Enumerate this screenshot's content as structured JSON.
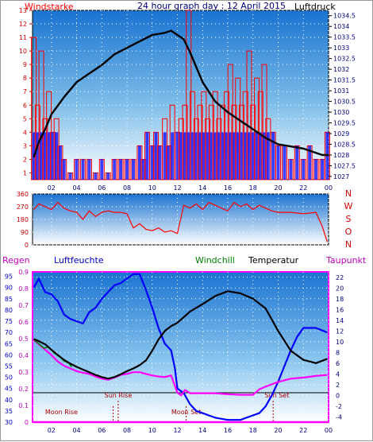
{
  "header": {
    "title": "24 hour graph day : 12 April 2015",
    "left_label": "Windstarke",
    "right_label": "Luftdruck"
  },
  "colors": {
    "wind": "#ff0000",
    "wind_low": "#0000ff",
    "pressure": "#000000",
    "direction": "#ff0000",
    "humidity": "#0000ff",
    "temperature": "#000000",
    "dewpoint": "#ff00ff",
    "windchill": "#008000",
    "rain": "#ff00ff",
    "sun_moon": "#aa0000",
    "axis_left_top": "#d00000",
    "axis_right_top": "#000080",
    "plot_top": "#1a73d1",
    "plot_bottom": "#ffffff"
  },
  "x_ticks": [
    "02",
    "04",
    "06",
    "08",
    "10",
    "12",
    "14",
    "16",
    "18",
    "20",
    "22",
    "00"
  ],
  "chart_data": [
    {
      "type": "line",
      "name": "wind-pressure",
      "x_unit": "hour",
      "xlim": [
        0.5,
        24.0
      ],
      "left_axis": {
        "label": "Windstarke",
        "ticks": [
          1,
          2,
          3,
          4,
          5,
          6,
          7,
          8,
          9,
          10,
          11,
          12,
          13
        ],
        "ylim": [
          0.5,
          13.0
        ]
      },
      "right_axis": {
        "label": "Luftdruck",
        "ticks": [
          "1027",
          "1027.5",
          "1028",
          "1028.5",
          "1029",
          "1029.5",
          "1030",
          "1030.5",
          "1031",
          "1031.5",
          "1032",
          "1032.5",
          "1033",
          "1033.5",
          "1034",
          "1034.5"
        ],
        "ylim": [
          1026.85,
          1034.75
        ]
      },
      "series": [
        {
          "role": "wind",
          "x": [
            0.6,
            0.9,
            1.2,
            1.5,
            1.8,
            2.1,
            2.4,
            2.7,
            3.0,
            3.5,
            4.0,
            4.5,
            5.0,
            5.5,
            6.0,
            6.5,
            7.0,
            7.5,
            8.0,
            8.5,
            9.0,
            9.3,
            9.6,
            10.0,
            10.3,
            10.6,
            11.0,
            11.3,
            11.6,
            12.0,
            12.3,
            12.6,
            12.9,
            13.2,
            13.5,
            13.8,
            14.1,
            14.4,
            14.7,
            15.0,
            15.3,
            15.6,
            15.9,
            16.2,
            16.5,
            16.8,
            17.1,
            17.4,
            17.7,
            18.0,
            18.3,
            18.6,
            18.9,
            19.2,
            19.6,
            20.0,
            20.5,
            21.0,
            21.5,
            22.0,
            22.5,
            23.0,
            23.5,
            23.9
          ],
          "y": [
            11,
            6,
            10,
            5,
            7,
            4,
            5,
            3,
            2,
            1,
            2,
            2,
            2,
            1,
            2,
            1,
            2,
            2,
            2,
            2,
            3,
            2,
            4,
            3,
            4,
            3,
            5,
            3,
            6,
            4,
            5,
            6,
            13,
            7,
            5,
            6,
            7,
            5,
            6,
            7,
            5,
            6,
            7,
            9,
            6,
            8,
            6,
            7,
            10,
            6,
            8,
            7,
            9,
            5,
            4,
            3,
            3,
            2,
            3,
            2,
            3,
            2,
            2,
            4
          ]
        },
        {
          "role": "pressure",
          "x": [
            0.6,
            1.0,
            1.5,
            2.0,
            3.0,
            4.0,
            5.0,
            6.0,
            7.0,
            8.0,
            9.0,
            10.0,
            11.0,
            11.5,
            12.0,
            12.5,
            13.0,
            13.5,
            14.0,
            15.0,
            16.0,
            17.0,
            18.0,
            19.0,
            20.0,
            21.0,
            22.0,
            23.0,
            23.5,
            24.0
          ],
          "y": [
            1027.9,
            1028.6,
            1029.2,
            1029.9,
            1030.7,
            1031.4,
            1031.8,
            1032.2,
            1032.7,
            1033.0,
            1033.3,
            1033.6,
            1033.7,
            1033.8,
            1033.6,
            1033.4,
            1032.8,
            1032.1,
            1031.4,
            1030.5,
            1030.0,
            1029.6,
            1029.2,
            1028.8,
            1028.5,
            1028.4,
            1028.3,
            1028.1,
            1028.0,
            1028.0
          ]
        }
      ]
    },
    {
      "type": "line",
      "name": "wind-direction",
      "x_unit": "hour",
      "xlim": [
        0.5,
        24.0
      ],
      "left_axis": {
        "ticks": [
          0,
          90,
          180,
          270,
          360
        ],
        "ylim": [
          0,
          360
        ]
      },
      "right_labels": [
        "N",
        "W",
        "S",
        "O",
        "N"
      ],
      "series": [
        {
          "role": "direction",
          "x": [
            0.6,
            1.0,
            1.5,
            2.0,
            2.5,
            3.0,
            3.5,
            4.0,
            4.5,
            5.0,
            5.5,
            6.0,
            6.5,
            7.0,
            7.5,
            8.0,
            8.5,
            9.0,
            9.5,
            10.0,
            10.5,
            11.0,
            11.5,
            12.0,
            12.5,
            13.0,
            13.5,
            14.0,
            14.5,
            15.0,
            15.5,
            16.0,
            16.5,
            17.0,
            17.5,
            18.0,
            18.5,
            19.0,
            19.5,
            20.0,
            21.0,
            22.0,
            23.0,
            23.5,
            23.9
          ],
          "y": [
            250,
            290,
            270,
            250,
            300,
            260,
            240,
            230,
            180,
            240,
            200,
            230,
            240,
            230,
            230,
            220,
            120,
            150,
            110,
            100,
            120,
            90,
            100,
            80,
            280,
            260,
            290,
            250,
            300,
            280,
            260,
            240,
            300,
            270,
            290,
            250,
            280,
            260,
            240,
            230,
            230,
            220,
            230,
            130,
            20
          ]
        }
      ]
    },
    {
      "type": "line",
      "name": "temperature-humidity",
      "x_unit": "hour",
      "xlim": [
        0.5,
        24.0
      ],
      "rain_axis": {
        "label": "Regen",
        "ticks": [
          "0",
          "0.1",
          "0.2",
          "0.3",
          "0.4",
          "0.5",
          "0.6",
          "0.7",
          "0.8",
          "0.9"
        ],
        "ylim": [
          0,
          0.9
        ]
      },
      "humidity_axis": {
        "label": "Luftfeuchte",
        "ticks": [
          30,
          35,
          40,
          45,
          50,
          55,
          60,
          65,
          70,
          75,
          80,
          85,
          90,
          95
        ],
        "ylim": [
          30,
          97
        ]
      },
      "temperature_axis": {
        "label": "Temperatur",
        "ticks": [
          -4,
          -2,
          0,
          2,
          4,
          6,
          8,
          10,
          12,
          14,
          16,
          18,
          20,
          22
        ],
        "ylim": [
          -5,
          23
        ]
      },
      "legend": [
        "Windchill",
        "Temperatur",
        "Taupunkt"
      ],
      "annotations": [
        "Sun Rise",
        "Sun Set",
        "Moon Rise",
        "Moon Set"
      ],
      "series": [
        {
          "role": "humidity",
          "x": [
            0.6,
            1.0,
            1.5,
            2.0,
            2.5,
            3.0,
            3.5,
            4.0,
            4.5,
            5.0,
            5.5,
            6.0,
            6.5,
            7.0,
            7.5,
            8.0,
            8.5,
            9.0,
            9.5,
            10.0,
            10.5,
            11.0,
            11.5,
            11.8,
            12.0,
            12.5,
            13.0,
            13.5,
            14.0,
            15.0,
            16.0,
            17.0,
            18.0,
            18.5,
            19.0,
            19.5,
            20.0,
            20.5,
            21.0,
            21.5,
            22.0,
            23.0,
            23.9
          ],
          "y": [
            90,
            94,
            88,
            87,
            84,
            78,
            76,
            75,
            74,
            79,
            81,
            85,
            88,
            91,
            92,
            94,
            96,
            96,
            89,
            81,
            72,
            65,
            62,
            54,
            45,
            43,
            38,
            35,
            34,
            32,
            31,
            31,
            33,
            34,
            37,
            42,
            48,
            55,
            62,
            68,
            72,
            72,
            70
          ]
        },
        {
          "role": "temperature",
          "x": [
            0.6,
            1.0,
            1.5,
            2.0,
            2.5,
            3.0,
            3.5,
            4.0,
            4.5,
            5.0,
            5.5,
            6.0,
            6.5,
            7.0,
            7.5,
            8.0,
            8.5,
            9.0,
            9.5,
            10.0,
            10.5,
            11.0,
            11.5,
            12.0,
            13.0,
            14.0,
            15.0,
            16.0,
            17.0,
            18.0,
            19.0,
            20.0,
            21.0,
            22.0,
            23.0,
            23.9
          ],
          "y": [
            10.5,
            10.1,
            9.5,
            8.5,
            7.5,
            6.6,
            5.9,
            5.3,
            4.8,
            4.3,
            3.8,
            3.4,
            3.1,
            3.4,
            3.9,
            4.5,
            5.0,
            5.6,
            6.5,
            8.3,
            10.4,
            12.0,
            12.9,
            13.5,
            15.6,
            17.0,
            18.5,
            19.4,
            19.0,
            18.0,
            16.2,
            12.0,
            8.3,
            6.6,
            6.0,
            6.8
          ]
        },
        {
          "role": "dewpoint",
          "x": [
            0.6,
            1.0,
            1.5,
            2.0,
            2.5,
            3.0,
            3.5,
            4.0,
            4.5,
            5.0,
            5.5,
            6.0,
            6.5,
            7.0,
            7.5,
            8.0,
            8.5,
            9.0,
            9.5,
            10.0,
            10.5,
            11.0,
            11.5,
            12.0,
            12.3,
            12.6,
            13.0,
            14.0,
            15.0,
            16.0,
            17.0,
            18.0,
            18.5,
            19.0,
            20.0,
            21.0,
            22.0,
            23.0,
            23.9
          ],
          "y": [
            10.3,
            9.5,
            8.5,
            7.5,
            6.3,
            5.5,
            5.0,
            4.5,
            4.2,
            4.0,
            3.5,
            3.1,
            2.9,
            3.3,
            3.8,
            4.0,
            4.3,
            4.3,
            4.0,
            3.7,
            3.5,
            3.4,
            3.7,
            0.5,
            0.0,
            1.0,
            0.4,
            0.4,
            0.4,
            0.2,
            0.1,
            0.1,
            1.1,
            1.6,
            2.5,
            3.1,
            3.3,
            3.6,
            3.8
          ]
        },
        {
          "role": "windchill",
          "x": [
            0.6,
            1.0,
            1.4,
            1.8,
            2.2,
            2.6,
            3.0,
            3.4,
            3.6
          ],
          "y": [
            10.4,
            9.6,
            8.8,
            9.0,
            7.9,
            7.4,
            6.4,
            6.0,
            5.3
          ]
        },
        {
          "role": "rain",
          "x": [
            0.6,
            24.0
          ],
          "y": [
            0,
            0
          ]
        }
      ]
    }
  ]
}
